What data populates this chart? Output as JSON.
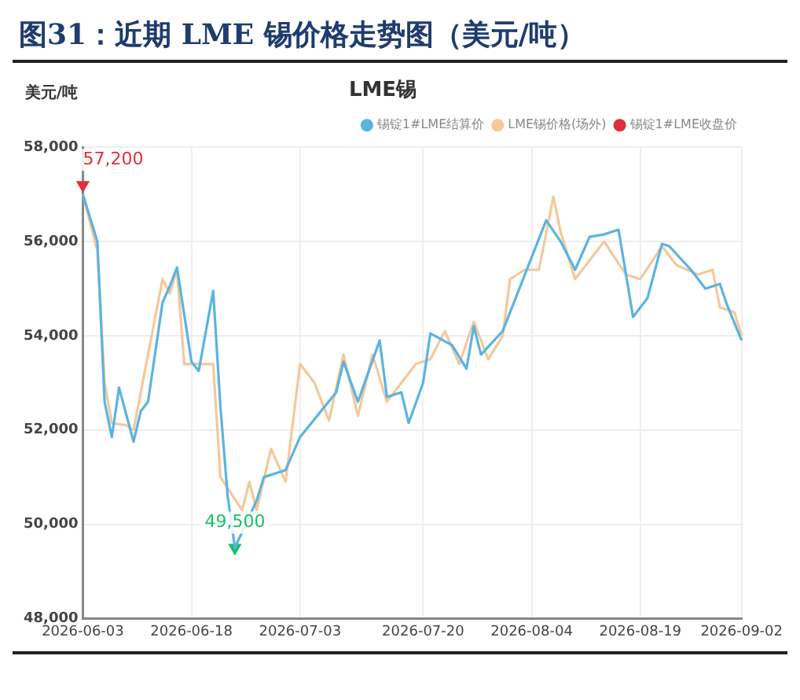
{
  "chart_data": {
    "type": "line",
    "title": "图31：近期 LME 锡价格走势图（美元/吨）",
    "subtitle": "LME锡",
    "ylabel": "美元/吨",
    "xlim": [
      "2026-06-03",
      "2026-09-02"
    ],
    "xticks": [
      "2026-06-03",
      "2026-06-18",
      "2026-07-03",
      "2026-07-20",
      "2026-08-04",
      "2026-08-19",
      "2026-09-02"
    ],
    "ylim": [
      48000,
      58000
    ],
    "yticks": [
      {
        "value": 48000,
        "label": "48,000"
      },
      {
        "value": 50000,
        "label": "50,000"
      },
      {
        "value": 52000,
        "label": "52,000"
      },
      {
        "value": 54000,
        "label": "54,000"
      },
      {
        "value": 56000,
        "label": "56,000"
      },
      {
        "value": 58000,
        "label": "58,000"
      }
    ],
    "grid": true,
    "legend": "top right",
    "marker": "none",
    "line_style": "solid",
    "series": [
      {
        "name": "锡锭1#LME结算价",
        "color": "#5ab4e0",
        "x": [
          "2026-06-03",
          "2026-06-05",
          "2026-06-06",
          "2026-06-07",
          "2026-06-08",
          "2026-06-10",
          "2026-06-11",
          "2026-06-12",
          "2026-06-14",
          "2026-06-15",
          "2026-06-16",
          "2026-06-18",
          "2026-06-19",
          "2026-06-21",
          "2026-06-22",
          "2026-06-23",
          "2026-06-24",
          "2026-06-27",
          "2026-06-28",
          "2026-07-01",
          "2026-07-03",
          "2026-07-08",
          "2026-07-09",
          "2026-07-11",
          "2026-07-14",
          "2026-07-15",
          "2026-07-17",
          "2026-07-18",
          "2026-07-20",
          "2026-07-21",
          "2026-07-24",
          "2026-07-26",
          "2026-07-27",
          "2026-07-28",
          "2026-07-31",
          "2026-08-06",
          "2026-08-08",
          "2026-08-10",
          "2026-08-12",
          "2026-08-14",
          "2026-08-16",
          "2026-08-18",
          "2026-08-20",
          "2026-08-22",
          "2026-08-23",
          "2026-08-26",
          "2026-08-28",
          "2026-08-30",
          "2026-08-31",
          "2026-09-02"
        ],
        "values": [
          57000,
          56000,
          52600,
          51850,
          52900,
          51750,
          52400,
          52600,
          54700,
          55050,
          55450,
          53450,
          53250,
          54950,
          52500,
          50600,
          49500,
          50500,
          51000,
          51150,
          51850,
          52800,
          53450,
          52600,
          53900,
          52700,
          52800,
          52150,
          53000,
          54050,
          53800,
          53300,
          54200,
          53600,
          54100,
          56450,
          56000,
          55400,
          56100,
          56150,
          56250,
          54400,
          54800,
          55950,
          55900,
          55400,
          55000,
          55100,
          54650,
          53900
        ]
      },
      {
        "name": "LME锡价格(场外)",
        "color": "#f5c89a",
        "x": [
          "2026-06-03",
          "2026-06-05",
          "2026-06-06",
          "2026-06-07",
          "2026-06-09",
          "2026-06-10",
          "2026-06-14",
          "2026-06-15",
          "2026-06-16",
          "2026-06-17",
          "2026-06-19",
          "2026-06-21",
          "2026-06-22",
          "2026-06-25",
          "2026-06-26",
          "2026-06-27",
          "2026-06-29",
          "2026-07-01",
          "2026-07-03",
          "2026-07-05",
          "2026-07-07",
          "2026-07-09",
          "2026-07-11",
          "2026-07-13",
          "2026-07-15",
          "2026-07-17",
          "2026-07-19",
          "2026-07-21",
          "2026-07-23",
          "2026-07-25",
          "2026-07-27",
          "2026-07-29",
          "2026-07-31",
          "2026-08-01",
          "2026-08-03",
          "2026-08-05",
          "2026-08-07",
          "2026-08-08",
          "2026-08-10",
          "2026-08-12",
          "2026-08-14",
          "2026-08-17",
          "2026-08-19",
          "2026-08-22",
          "2026-08-24",
          "2026-08-27",
          "2026-08-29",
          "2026-08-30",
          "2026-09-01",
          "2026-09-02"
        ],
        "values": [
          57000,
          55800,
          53000,
          52150,
          52100,
          52000,
          55200,
          54900,
          55400,
          53400,
          53400,
          53400,
          51000,
          50300,
          50900,
          50300,
          51600,
          50900,
          53400,
          53000,
          52200,
          53600,
          52300,
          53600,
          52600,
          53000,
          53400,
          53500,
          54100,
          53400,
          54300,
          53500,
          54000,
          55200,
          55400,
          55400,
          56950,
          56200,
          55200,
          55600,
          56000,
          55300,
          55200,
          55900,
          55500,
          55300,
          55400,
          54600,
          54500,
          54000
        ]
      },
      {
        "name": "锡锭1#LME收盘价",
        "type": "scatter",
        "marker": "triangle",
        "color": "#d9303c",
        "colors": [
          "#e0303c",
          "#1dbf6a"
        ],
        "x": [
          "2026-06-03",
          "2026-06-24"
        ],
        "values": [
          57200,
          49500
        ],
        "value_labels": [
          "57,200",
          "49,500"
        ]
      }
    ]
  }
}
